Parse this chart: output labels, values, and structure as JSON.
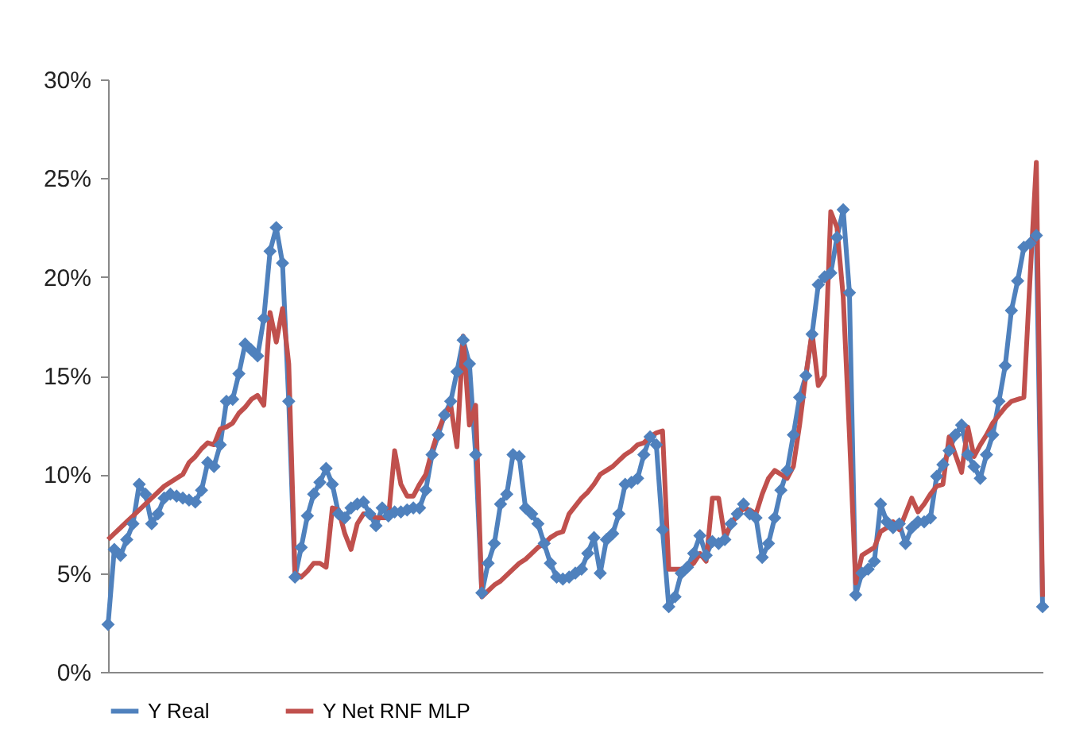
{
  "chart_data": {
    "type": "line",
    "categories": [
      null,
      null,
      null,
      null,
      null,
      null,
      null,
      null,
      null,
      null,
      null,
      null,
      null,
      null,
      null,
      null,
      null,
      null,
      null,
      null,
      null,
      null,
      null,
      null,
      null,
      null,
      null,
      null,
      null,
      null,
      null,
      null,
      null,
      null,
      null,
      null,
      null,
      null,
      null,
      null,
      null,
      null,
      null,
      null,
      null,
      null,
      null,
      null,
      null,
      null,
      null,
      null,
      null,
      null,
      null,
      null,
      null,
      null,
      null,
      null,
      null,
      null,
      null,
      null,
      null,
      null,
      null,
      null,
      null,
      null,
      null,
      null,
      null,
      null,
      null,
      null,
      null,
      null,
      null,
      null,
      null,
      null,
      null,
      null,
      null,
      null,
      null,
      null,
      null,
      null,
      null,
      null,
      null,
      null,
      null,
      null,
      null,
      null,
      null,
      null,
      null,
      null,
      null,
      null,
      null,
      null,
      null,
      null,
      null,
      null,
      null,
      null,
      null,
      null,
      null,
      null,
      null,
      null,
      null,
      null,
      null,
      null,
      null,
      null,
      null,
      null,
      null,
      null,
      null,
      null,
      null,
      null,
      null,
      null,
      null,
      null,
      null,
      null,
      null,
      null,
      null,
      null,
      null,
      null,
      null,
      null,
      null,
      null,
      null,
      null,
      null
    ],
    "series": [
      {
        "name": "Y Real",
        "color": "#4f81bd",
        "marker": "diamond",
        "values": [
          2.4,
          6.2,
          5.9,
          6.7,
          7.5,
          9.5,
          9.0,
          7.5,
          8.0,
          8.8,
          9.0,
          8.9,
          8.8,
          8.7,
          8.6,
          9.2,
          10.6,
          10.4,
          11.5,
          13.7,
          13.8,
          15.1,
          16.6,
          16.3,
          16.0,
          17.9,
          21.3,
          22.5,
          20.7,
          13.7,
          4.8,
          6.3,
          7.9,
          9.0,
          9.6,
          10.3,
          9.5,
          8.0,
          7.8,
          8.3,
          8.5,
          8.6,
          8.0,
          7.4,
          8.3,
          7.9,
          8.1,
          8.1,
          8.2,
          8.3,
          8.3,
          9.2,
          11.0,
          12.0,
          13.0,
          13.7,
          15.2,
          16.8,
          15.6,
          11.0,
          4.0,
          5.5,
          6.5,
          8.5,
          9.0,
          11.0,
          10.9,
          8.3,
          8.0,
          7.5,
          6.5,
          5.5,
          4.8,
          4.7,
          4.8,
          5.0,
          5.2,
          6.0,
          6.8,
          5.0,
          6.7,
          7.0,
          8.0,
          9.5,
          9.6,
          9.8,
          11.0,
          11.9,
          11.5,
          7.2,
          3.3,
          3.8,
          5.0,
          5.3,
          6.0,
          6.9,
          5.9,
          6.6,
          6.5,
          6.7,
          7.5,
          8.0,
          8.5,
          8.0,
          7.8,
          5.8,
          6.5,
          7.8,
          9.2,
          10.2,
          12.0,
          13.9,
          15.0,
          17.1,
          19.6,
          20.0,
          20.2,
          22.0,
          23.4,
          19.2,
          3.9,
          5.0,
          5.2,
          5.6,
          8.5,
          7.6,
          7.3,
          7.5,
          6.5,
          7.3,
          7.6,
          7.6,
          7.8,
          9.9,
          10.5,
          11.2,
          12.0,
          12.5,
          11.0,
          10.4,
          9.8,
          11.0,
          12.0,
          13.7,
          15.5,
          18.3,
          19.8,
          21.5,
          21.7,
          22.1,
          3.3
        ]
      },
      {
        "name": "Y Net RNF MLP",
        "color": "#c0504d",
        "marker": "none",
        "values": [
          6.7,
          7.0,
          7.3,
          7.6,
          7.9,
          8.2,
          8.5,
          8.8,
          9.1,
          9.4,
          9.6,
          9.8,
          10.0,
          10.6,
          10.9,
          11.3,
          11.6,
          11.5,
          12.3,
          12.4,
          12.6,
          13.1,
          13.4,
          13.8,
          14.0,
          13.5,
          18.2,
          16.7,
          18.4,
          15.6,
          5.0,
          4.8,
          5.1,
          5.5,
          5.5,
          5.3,
          8.3,
          8.2,
          7.0,
          6.2,
          7.5,
          8.0,
          8.0,
          7.8,
          7.8,
          7.8,
          11.2,
          9.5,
          8.9,
          8.9,
          9.5,
          10.0,
          11.2,
          12.2,
          13.0,
          13.5,
          11.4,
          17.0,
          12.5,
          13.5,
          3.8,
          4.1,
          4.4,
          4.6,
          4.9,
          5.2,
          5.5,
          5.7,
          6.0,
          6.3,
          6.5,
          6.8,
          7.0,
          7.1,
          8.0,
          8.4,
          8.8,
          9.1,
          9.5,
          10.0,
          10.2,
          10.4,
          10.7,
          11.0,
          11.2,
          11.5,
          11.6,
          11.9,
          12.1,
          12.2,
          5.2,
          5.2,
          5.2,
          5.3,
          5.5,
          6.0,
          5.6,
          8.8,
          8.8,
          6.8,
          7.5,
          7.9,
          8.3,
          8.2,
          8.0,
          9.0,
          9.8,
          10.2,
          10.0,
          9.8,
          10.4,
          12.5,
          15.0,
          17.2,
          14.5,
          15.0,
          23.3,
          22.5,
          19.0,
          12.0,
          4.5,
          5.9,
          6.1,
          6.3,
          7.1,
          7.3,
          7.6,
          7.2,
          8.0,
          8.8,
          8.1,
          8.5,
          9.0,
          9.4,
          9.5,
          11.9,
          11.0,
          10.1,
          12.4,
          10.9,
          11.5,
          12.0,
          12.6,
          13.0,
          13.4,
          13.7,
          13.8,
          13.9,
          20.0,
          25.8,
          3.8
        ]
      }
    ],
    "ylim": [
      0,
      30
    ],
    "yticks": [
      {
        "value": 0,
        "label": "0%"
      },
      {
        "value": 5,
        "label": "5%"
      },
      {
        "value": 10,
        "label": "10%"
      },
      {
        "value": 15,
        "label": "15%"
      },
      {
        "value": 20,
        "label": "20%"
      },
      {
        "value": 25,
        "label": "25%"
      },
      {
        "value": 30,
        "label": "30%"
      }
    ],
    "legend": "bottom"
  }
}
